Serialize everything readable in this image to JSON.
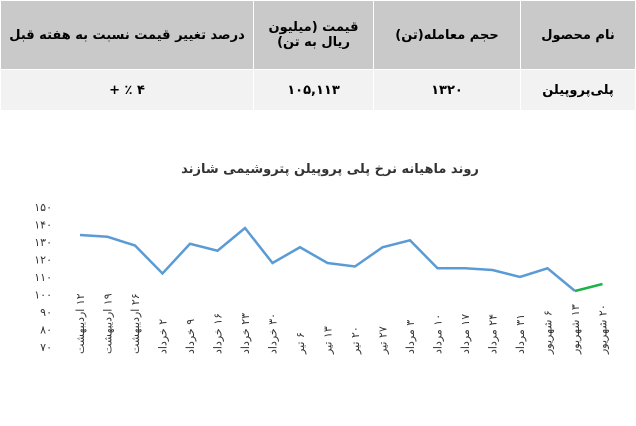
{
  "table": {
    "header": [
      "نام محصول",
      "حجم معامله(تن)",
      "قیمت (میلیون ریال به تن)",
      "درصد تغییر قیمت نسبت به هفته قبل"
    ],
    "rows": [
      [
        "پلی‌پروپیلن",
        "۱۳۲۰",
        "۱۰۵,۱۱۳",
        "۴ ٪ +"
      ]
    ]
  },
  "chart_data": {
    "type": "line",
    "title": "روند ماهیانه نرخ پلی پروپیلن پتروشیمی شازند",
    "categories": [
      "۱۲ اردیبهشت",
      "۱۹ اردیبهشت",
      "۲۶ اردیبهشت",
      "۲ خرداد",
      "۹ خرداد",
      "۱۶ خرداد",
      "۲۳ خرداد",
      "۳۰ خرداد",
      "۶ تیر",
      "۱۳ تیر",
      "۲۰ تیر",
      "۲۷ تیر",
      "۳ مرداد",
      "۱۰ مرداد",
      "۱۷ مرداد",
      "۲۴ مرداد",
      "۳۱ مرداد",
      "۶ شهریور",
      "۱۳ شهریور",
      "۲۰ شهریور"
    ],
    "series": [
      {
        "color": "#5b9bd5",
        "values": [
          134,
          133,
          128,
          112,
          129,
          125,
          138,
          118,
          127,
          118,
          116,
          127,
          131,
          115,
          115,
          114,
          110,
          115,
          102,
          null
        ]
      },
      {
        "color": "#1db34a",
        "values": [
          null,
          null,
          null,
          null,
          null,
          null,
          null,
          null,
          null,
          null,
          null,
          null,
          null,
          null,
          null,
          null,
          null,
          null,
          102,
          106
        ]
      }
    ],
    "ylim": [
      70,
      150
    ],
    "yticks": [
      {
        "value": 70,
        "label": "۷۰"
      },
      {
        "value": 80,
        "label": "۸۰"
      },
      {
        "value": 90,
        "label": "۹۰"
      },
      {
        "value": 100,
        "label": "۱۰۰"
      },
      {
        "value": 110,
        "label": "۱۱۰"
      },
      {
        "value": 120,
        "label": "۱۲۰"
      },
      {
        "value": 130,
        "label": "۱۳۰"
      },
      {
        "value": 140,
        "label": "۱۴۰"
      },
      {
        "value": 150,
        "label": "۱۵۰"
      }
    ]
  }
}
